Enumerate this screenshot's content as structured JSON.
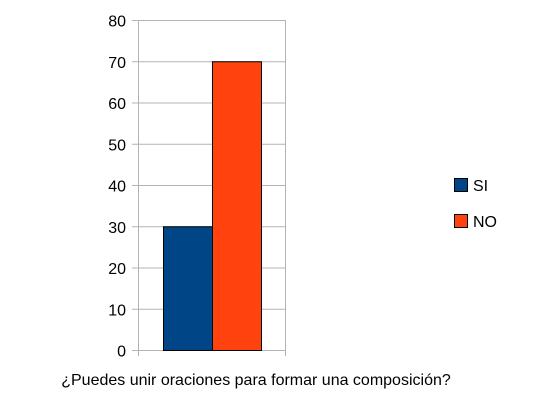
{
  "chart_data": {
    "type": "bar",
    "categories": [
      "¿Puedes unir oraciones para formar una composición?"
    ],
    "series": [
      {
        "name": "SI",
        "values": [
          30
        ],
        "color": "#004586"
      },
      {
        "name": "NO",
        "values": [
          70
        ],
        "color": "#ff420e"
      }
    ],
    "ylim": [
      0,
      80
    ],
    "yticks": [
      0,
      10,
      20,
      30,
      40,
      50,
      60,
      70,
      80
    ],
    "grid": "horizontal",
    "legend_position": "right",
    "colors": {
      "grid": "#b3b3b3",
      "axis": "#b3b3b3",
      "bar_border": "#000000"
    }
  }
}
